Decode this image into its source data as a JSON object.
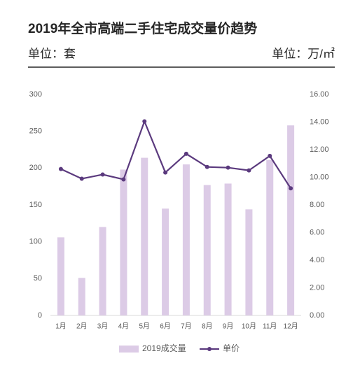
{
  "chart_data": {
    "type": "bar-line",
    "title": "2019年全市高端二手住宅成交量价趋势",
    "ylabel": "单位：套",
    "y2label": "单位：万/㎡",
    "categories": [
      "1月",
      "2月",
      "3月",
      "4月",
      "5月",
      "6月",
      "7月",
      "8月",
      "9月",
      "10月",
      "11月",
      "12月"
    ],
    "series": [
      {
        "name": "2019成交量",
        "type": "bar",
        "color": "#dccbe6",
        "values": [
          106,
          51,
          120,
          198,
          214,
          145,
          205,
          177,
          179,
          144,
          211,
          258
        ]
      },
      {
        "name": "单价",
        "type": "line",
        "axis": "y2",
        "color": "#5b3a7e",
        "values": [
          10.6,
          9.9,
          10.2,
          9.85,
          14.05,
          10.35,
          11.7,
          10.75,
          10.7,
          10.5,
          11.55,
          9.2
        ]
      }
    ],
    "ylim": [
      0,
      300
    ],
    "yticks": [
      0,
      50,
      100,
      150,
      200,
      250,
      300
    ],
    "y2lim": [
      0,
      16
    ],
    "y2ticks": [
      {
        "value": 0,
        "label": "0.00"
      },
      {
        "value": 2,
        "label": "2.00"
      },
      {
        "value": 4,
        "label": "4.00"
      },
      {
        "value": 6,
        "label": "6.00"
      },
      {
        "value": 8,
        "label": "8.00"
      },
      {
        "value": 10,
        "label": "10.00"
      },
      {
        "value": 12,
        "label": "12.00"
      },
      {
        "value": 14,
        "label": "14.00"
      },
      {
        "value": 16,
        "label": "16.00"
      }
    ],
    "grid": false,
    "legend": "bottom"
  }
}
